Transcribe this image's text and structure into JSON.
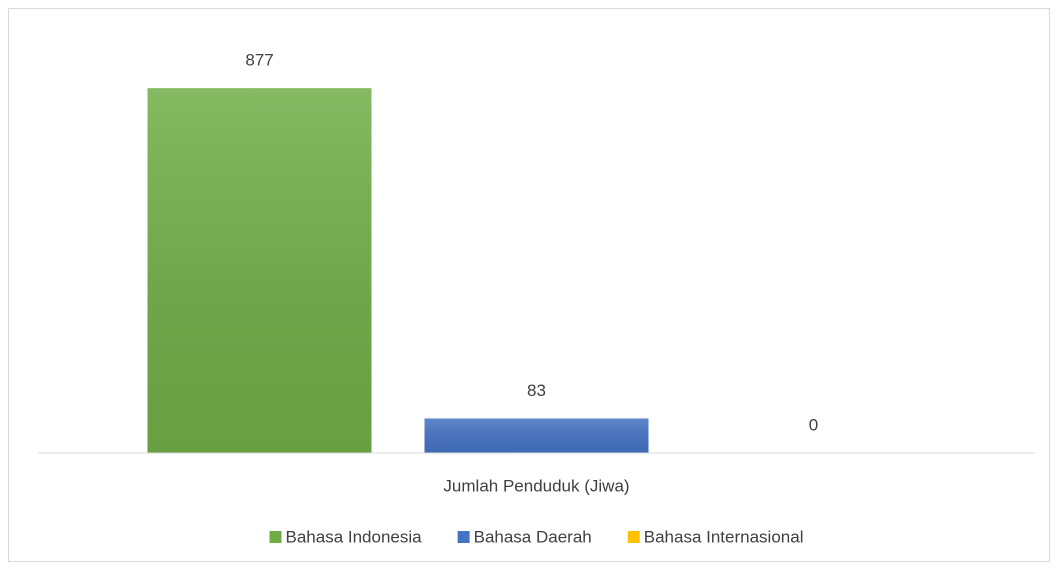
{
  "chart_data": {
    "type": "bar",
    "categories": [
      "Jumlah Penduduk (Jiwa)"
    ],
    "series": [
      {
        "name": "Bahasa Indonesia",
        "color": "#70ad47",
        "values": [
          877
        ]
      },
      {
        "name": "Bahasa Daerah",
        "color": "#4472c4",
        "values": [
          83
        ]
      },
      {
        "name": "Bahasa Internasional",
        "color": "#ffc000",
        "values": [
          0
        ]
      }
    ],
    "ylim": [
      0,
      1000
    ],
    "legend": "bottom"
  }
}
